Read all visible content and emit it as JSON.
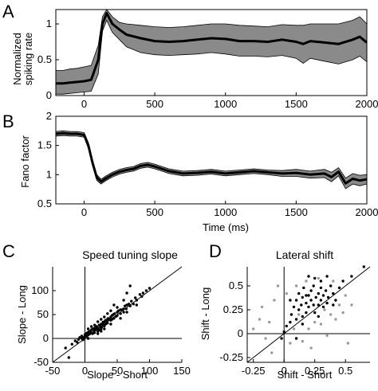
{
  "chart_data": [
    {
      "panel_label": "A",
      "type": "area",
      "title": "",
      "xlabel": "",
      "ylabel": [
        "Normalized",
        "spiking rate"
      ],
      "xlim": [
        -200,
        2000
      ],
      "ylim": [
        0,
        1.2
      ],
      "xticks": [
        0,
        500,
        1000,
        1500,
        2000
      ],
      "yticks": [
        0,
        0.5,
        1
      ],
      "xticklabels": [
        "0",
        "500",
        "1000",
        "1500",
        "2000"
      ],
      "yticklabels": [
        "0",
        "0.5",
        "1"
      ],
      "series": [
        {
          "x": [
            -200,
            -150,
            -100,
            -50,
            0,
            50,
            100,
            130,
            160,
            200,
            250,
            300,
            400,
            500,
            600,
            700,
            800,
            900,
            1000,
            1100,
            1200,
            1300,
            1400,
            1500,
            1550,
            1600,
            1700,
            1800,
            1900,
            1950,
            2000
          ],
          "mean": [
            0.17,
            0.17,
            0.18,
            0.19,
            0.2,
            0.22,
            0.5,
            1.0,
            1.15,
            1.0,
            0.92,
            0.85,
            0.8,
            0.76,
            0.75,
            0.76,
            0.78,
            0.8,
            0.79,
            0.76,
            0.76,
            0.75,
            0.78,
            0.75,
            0.72,
            0.76,
            0.74,
            0.72,
            0.78,
            0.82,
            0.74
          ],
          "upper": [
            0.35,
            0.35,
            0.37,
            0.38,
            0.4,
            0.42,
            0.7,
            1.1,
            1.2,
            1.1,
            1.02,
            1.0,
            0.98,
            0.96,
            0.95,
            0.96,
            0.98,
            1.0,
            1.0,
            0.98,
            0.97,
            0.96,
            0.99,
            0.98,
            0.98,
            1.0,
            1.0,
            1.0,
            1.05,
            1.1,
            1.0
          ],
          "lower": [
            0.02,
            0.02,
            0.03,
            0.04,
            0.05,
            0.06,
            0.3,
            0.9,
            1.05,
            0.88,
            0.78,
            0.68,
            0.6,
            0.57,
            0.56,
            0.57,
            0.58,
            0.6,
            0.58,
            0.55,
            0.55,
            0.54,
            0.56,
            0.52,
            0.45,
            0.52,
            0.48,
            0.44,
            0.5,
            0.55,
            0.47
          ]
        }
      ]
    },
    {
      "panel_label": "B",
      "type": "area",
      "title": "",
      "xlabel": "Time (ms)",
      "ylabel": [
        "Fano factor"
      ],
      "xlim": [
        -200,
        2000
      ],
      "ylim": [
        0.5,
        2
      ],
      "xticks": [
        0,
        500,
        1000,
        1500,
        2000
      ],
      "yticks": [
        0.5,
        1,
        1.5,
        2
      ],
      "xticklabels": [
        "0",
        "500",
        "1000",
        "1500",
        "2000"
      ],
      "yticklabels": [
        "0.5",
        "1",
        "1.5",
        "2"
      ],
      "series": [
        {
          "x": [
            -200,
            -150,
            -100,
            -50,
            0,
            30,
            60,
            90,
            120,
            150,
            200,
            250,
            300,
            350,
            400,
            450,
            500,
            550,
            600,
            700,
            800,
            900,
            1000,
            1100,
            1200,
            1300,
            1400,
            1500,
            1600,
            1700,
            1750,
            1800,
            1850,
            1900,
            1950,
            2000
          ],
          "mean": [
            1.7,
            1.71,
            1.7,
            1.7,
            1.68,
            1.5,
            1.2,
            0.95,
            0.88,
            0.93,
            1.0,
            1.05,
            1.08,
            1.1,
            1.15,
            1.17,
            1.14,
            1.1,
            1.06,
            1.02,
            1.03,
            1.05,
            1.02,
            1.04,
            1.06,
            1.04,
            1.02,
            1.03,
            1.0,
            1.02,
            0.96,
            1.05,
            0.85,
            0.93,
            0.9,
            0.92
          ],
          "upper": [
            1.74,
            1.75,
            1.74,
            1.74,
            1.72,
            1.55,
            1.25,
            1.0,
            0.92,
            0.97,
            1.04,
            1.09,
            1.12,
            1.14,
            1.19,
            1.21,
            1.18,
            1.14,
            1.1,
            1.06,
            1.07,
            1.09,
            1.06,
            1.08,
            1.1,
            1.08,
            1.07,
            1.09,
            1.06,
            1.09,
            1.04,
            1.12,
            0.94,
            1.02,
            0.99,
            1.0
          ],
          "lower": [
            1.66,
            1.67,
            1.66,
            1.66,
            1.64,
            1.45,
            1.15,
            0.9,
            0.84,
            0.89,
            0.96,
            1.01,
            1.04,
            1.06,
            1.11,
            1.13,
            1.1,
            1.06,
            1.02,
            0.98,
            0.99,
            1.01,
            0.98,
            1.0,
            1.02,
            1.0,
            0.97,
            0.97,
            0.94,
            0.95,
            0.88,
            0.98,
            0.76,
            0.84,
            0.81,
            0.84
          ]
        }
      ]
    },
    {
      "panel_label": "C",
      "type": "scatter",
      "title": "Speed tuning slope",
      "xlabel": "Slope - Short",
      "ylabel": [
        "Slope - Long"
      ],
      "xlim": [
        -50,
        150
      ],
      "ylim": [
        -50,
        150
      ],
      "xticks": [
        -50,
        0,
        50,
        100,
        150
      ],
      "yticks": [
        -50,
        0,
        50,
        100
      ],
      "xticklabels": [
        "-50",
        "0",
        "50",
        "100",
        "150"
      ],
      "yticklabels": [
        "-50",
        "0",
        "50",
        "100"
      ],
      "reference_lines": [
        "y = x",
        "x = 0",
        "y = 0"
      ],
      "points": [
        [
          -30,
          -20
        ],
        [
          -20,
          -12
        ],
        [
          -15,
          -5
        ],
        [
          -12,
          -8
        ],
        [
          -10,
          -2
        ],
        [
          -8,
          2
        ],
        [
          -5,
          0
        ],
        [
          -5,
          5
        ],
        [
          -3,
          -3
        ],
        [
          -2,
          2
        ],
        [
          0,
          5
        ],
        [
          0,
          8
        ],
        [
          2,
          10
        ],
        [
          3,
          5
        ],
        [
          4,
          12
        ],
        [
          5,
          0
        ],
        [
          5,
          8
        ],
        [
          6,
          14
        ],
        [
          8,
          10
        ],
        [
          8,
          15
        ],
        [
          10,
          12
        ],
        [
          10,
          18
        ],
        [
          12,
          10
        ],
        [
          12,
          20
        ],
        [
          14,
          16
        ],
        [
          15,
          22
        ],
        [
          15,
          12
        ],
        [
          16,
          18
        ],
        [
          18,
          20
        ],
        [
          18,
          25
        ],
        [
          20,
          15
        ],
        [
          20,
          22
        ],
        [
          22,
          28
        ],
        [
          22,
          18
        ],
        [
          24,
          25
        ],
        [
          25,
          30
        ],
        [
          25,
          20
        ],
        [
          26,
          24
        ],
        [
          28,
          30
        ],
        [
          28,
          34
        ],
        [
          30,
          26
        ],
        [
          30,
          35
        ],
        [
          32,
          30
        ],
        [
          32,
          38
        ],
        [
          34,
          36
        ],
        [
          35,
          40
        ],
        [
          35,
          32
        ],
        [
          36,
          42
        ],
        [
          38,
          40
        ],
        [
          40,
          45
        ],
        [
          40,
          38
        ],
        [
          42,
          48
        ],
        [
          42,
          40
        ],
        [
          44,
          50
        ],
        [
          45,
          42
        ],
        [
          46,
          52
        ],
        [
          48,
          46
        ],
        [
          50,
          55
        ],
        [
          50,
          48
        ],
        [
          52,
          58
        ],
        [
          55,
          52
        ],
        [
          55,
          60
        ],
        [
          58,
          60
        ],
        [
          60,
          62
        ],
        [
          60,
          55
        ],
        [
          62,
          68
        ],
        [
          64,
          62
        ],
        [
          65,
          70
        ],
        [
          68,
          72
        ],
        [
          70,
          68
        ],
        [
          72,
          78
        ],
        [
          75,
          72
        ],
        [
          78,
          85
        ],
        [
          80,
          80
        ],
        [
          85,
          92
        ],
        [
          88,
          88
        ],
        [
          90,
          95
        ],
        [
          95,
          100
        ],
        [
          100,
          105
        ],
        [
          -25,
          -40
        ],
        [
          70,
          110
        ],
        [
          65,
          95
        ],
        [
          60,
          80
        ],
        [
          45,
          70
        ],
        [
          50,
          65
        ],
        [
          40,
          58
        ],
        [
          35,
          52
        ],
        [
          30,
          45
        ],
        [
          25,
          40
        ],
        [
          20,
          35
        ],
        [
          15,
          28
        ],
        [
          10,
          25
        ],
        [
          5,
          20
        ],
        [
          20,
          10
        ],
        [
          25,
          15
        ],
        [
          30,
          20
        ],
        [
          40,
          30
        ],
        [
          55,
          42
        ],
        [
          65,
          55
        ],
        [
          80,
          70
        ]
      ]
    },
    {
      "panel_label": "D",
      "type": "scatter",
      "title": "Lateral shift",
      "xlabel": "Shift - Short",
      "ylabel": [
        "Shift - Long"
      ],
      "xlim": [
        -0.3,
        0.7
      ],
      "ylim": [
        -0.3,
        0.7
      ],
      "xticks": [
        -0.25,
        0,
        0.25,
        0.5
      ],
      "yticks": [
        -0.25,
        0,
        0.25,
        0.5
      ],
      "xticklabels": [
        "-0.25",
        "0",
        "0.25",
        "0.5"
      ],
      "yticklabels": [
        "-0.25",
        "0",
        "0.25",
        "0.5"
      ],
      "reference_lines": [
        "y = x",
        "x = 0",
        "y = 0"
      ],
      "series": [
        {
          "name": "",
          "color": "#000000",
          "points": [
            [
              -0.02,
              -0.05
            ],
            [
              0.0,
              0.02
            ],
            [
              0.02,
              0.08
            ],
            [
              0.05,
              0.12
            ],
            [
              0.06,
              0.2
            ],
            [
              0.08,
              0.28
            ],
            [
              0.1,
              0.35
            ],
            [
              0.1,
              0.15
            ],
            [
              0.12,
              0.42
            ],
            [
              0.12,
              0.25
            ],
            [
              0.14,
              0.3
            ],
            [
              0.15,
              0.38
            ],
            [
              0.15,
              0.18
            ],
            [
              0.16,
              0.48
            ],
            [
              0.18,
              0.22
            ],
            [
              0.18,
              0.32
            ],
            [
              0.2,
              0.4
            ],
            [
              0.2,
              0.28
            ],
            [
              0.22,
              0.35
            ],
            [
              0.22,
              0.45
            ],
            [
              0.24,
              0.3
            ],
            [
              0.24,
              0.5
            ],
            [
              0.25,
              0.22
            ],
            [
              0.26,
              0.38
            ],
            [
              0.28,
              0.42
            ],
            [
              0.28,
              0.3
            ],
            [
              0.3,
              0.35
            ],
            [
              0.3,
              0.48
            ],
            [
              0.32,
              0.28
            ],
            [
              0.32,
              0.4
            ],
            [
              0.34,
              0.45
            ],
            [
              0.35,
              0.32
            ],
            [
              0.36,
              0.38
            ],
            [
              0.38,
              0.5
            ],
            [
              0.4,
              0.42
            ],
            [
              0.42,
              0.35
            ],
            [
              0.45,
              0.48
            ],
            [
              0.48,
              0.55
            ],
            [
              0.55,
              0.6
            ],
            [
              0.65,
              0.7
            ],
            [
              0.25,
              0.58
            ],
            [
              0.2,
              0.6
            ],
            [
              0.3,
              0.55
            ],
            [
              0.1,
              -0.05
            ],
            [
              0.05,
              0.35
            ],
            [
              0.35,
              0.6
            ],
            [
              0.15,
              0.1
            ],
            [
              0.4,
              0.3
            ],
            [
              0.28,
              0.18
            ],
            [
              0.18,
              0.4
            ]
          ]
        },
        {
          "name": "",
          "color": "#9a9a9a",
          "points": [
            [
              -0.25,
              0.05
            ],
            [
              -0.2,
              0.15
            ],
            [
              -0.15,
              -0.05
            ],
            [
              -0.12,
              0.12
            ],
            [
              -0.1,
              -0.2
            ],
            [
              -0.05,
              0.5
            ],
            [
              -0.08,
              0.35
            ],
            [
              0.02,
              0.42
            ],
            [
              0.05,
              -0.1
            ],
            [
              0.08,
              0.05
            ],
            [
              0.1,
              0.5
            ],
            [
              0.15,
              -0.08
            ],
            [
              0.18,
              0.55
            ],
            [
              0.2,
              0.05
            ],
            [
              0.22,
              -0.15
            ],
            [
              0.25,
              0.12
            ],
            [
              0.28,
              0.58
            ],
            [
              0.3,
              0.1
            ],
            [
              0.33,
              0.25
            ],
            [
              0.35,
              -0.02
            ],
            [
              0.38,
              0.2
            ],
            [
              0.4,
              0.55
            ],
            [
              0.42,
              0.15
            ],
            [
              0.45,
              0.3
            ],
            [
              0.48,
              0.22
            ],
            [
              0.5,
              0.4
            ],
            [
              0.52,
              -0.1
            ],
            [
              0.55,
              0.3
            ],
            [
              -0.18,
              0.28
            ],
            [
              0.12,
              0.2
            ]
          ]
        }
      ]
    }
  ]
}
